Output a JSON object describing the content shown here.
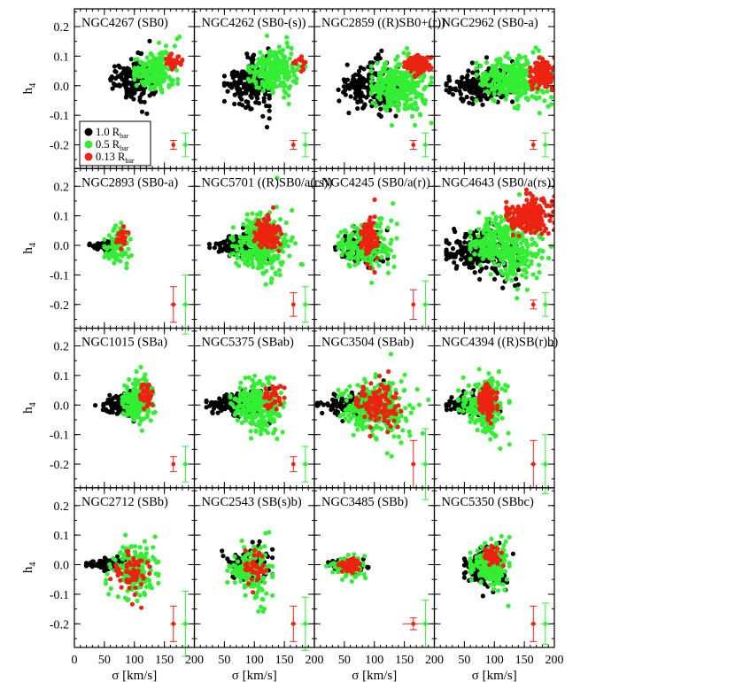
{
  "chart_data": {
    "type": "scatter",
    "xlabel": "σ [km/s]",
    "ylabel": "h",
    "ylabel_sub": "4",
    "xlim": [
      0,
      200
    ],
    "ylim": [
      -0.28,
      0.26
    ],
    "xticks": [
      0,
      50,
      100,
      150,
      200
    ],
    "yticks": [
      -0.2,
      -0.1,
      0.0,
      0.1,
      0.2
    ],
    "xtick_labels": [
      "0",
      "50",
      "100",
      "150",
      "200"
    ],
    "ytick_labels": [
      "-0.2",
      "-0.1",
      "0.0",
      "0.1",
      "0.2"
    ],
    "legend": [
      {
        "name": "1.0 R",
        "sub": "bar",
        "color": "#000000"
      },
      {
        "name": "0.5 R",
        "sub": "bar",
        "color": "#33ee33"
      },
      {
        "name": "0.13 R",
        "sub": "bar",
        "color": "#ee2211"
      }
    ],
    "panels": [
      {
        "title": "NGC4267 (SB0)",
        "series": [
          {
            "name": "1.0 R_bar",
            "cx": 95,
            "cy": 0.02,
            "sx": 18,
            "sy": 0.04,
            "xmin": 60,
            "xmax": 135,
            "n": 150,
            "skew": 0.6
          },
          {
            "name": "0.5 R_bar",
            "cx": 135,
            "cy": 0.05,
            "sx": 18,
            "sy": 0.04,
            "xmin": 100,
            "xmax": 175,
            "n": 190,
            "skew": 0.5
          },
          {
            "name": "0.13 R_bar",
            "cx": 165,
            "cy": 0.08,
            "sx": 8,
            "sy": 0.02,
            "xmin": 150,
            "xmax": 180,
            "n": 30,
            "skew": 0.3
          }
        ],
        "error_bars": {
          "red": {
            "x": 165,
            "y": -0.2,
            "xerr": 3,
            "yerr": 0.015
          },
          "green": {
            "x": 185,
            "y": -0.2,
            "xerr": 5,
            "yerr": 0.04
          }
        }
      },
      {
        "title": "NGC4262 (SB0-(s))",
        "series": [
          {
            "name": "1.0 R_bar",
            "cx": 90,
            "cy": 0.0,
            "sx": 20,
            "sy": 0.04,
            "xmin": 50,
            "xmax": 125,
            "n": 180,
            "skew": 0.6
          },
          {
            "name": "0.5 R_bar",
            "cx": 130,
            "cy": 0.05,
            "sx": 20,
            "sy": 0.045,
            "xmin": 90,
            "xmax": 185,
            "n": 220,
            "skew": 0.5
          },
          {
            "name": "0.13 R_bar",
            "cx": 175,
            "cy": 0.08,
            "sx": 8,
            "sy": 0.02,
            "xmin": 165,
            "xmax": 190,
            "n": 12,
            "skew": 0.3
          }
        ],
        "error_bars": {
          "red": {
            "x": 165,
            "y": -0.2,
            "xerr": 3,
            "yerr": 0.015
          },
          "green": {
            "x": 185,
            "y": -0.2,
            "xerr": 5,
            "yerr": 0.04
          }
        }
      },
      {
        "title": "NGC2859 ((R)SB0+(r))",
        "series": [
          {
            "name": "1.0 R_bar",
            "cx": 95,
            "cy": 0.0,
            "sx": 25,
            "sy": 0.04,
            "xmin": 40,
            "xmax": 140,
            "n": 180,
            "skew": 0.7
          },
          {
            "name": "0.5 R_bar",
            "cx": 140,
            "cy": 0.0,
            "sx": 22,
            "sy": 0.06,
            "xmin": 95,
            "xmax": 195,
            "n": 300,
            "skew": 0.4
          },
          {
            "name": "0.13 R_bar",
            "cx": 172,
            "cy": 0.07,
            "sx": 12,
            "sy": 0.03,
            "xmin": 150,
            "xmax": 195,
            "n": 100,
            "skew": 0.2
          }
        ],
        "error_bars": {
          "red": {
            "x": 165,
            "y": -0.2,
            "xerr": 3,
            "yerr": 0.015
          },
          "green": {
            "x": 185,
            "y": -0.2,
            "xerr": 5,
            "yerr": 0.04
          }
        }
      },
      {
        "title": "NGC2962 (SB0-a)",
        "series": [
          {
            "name": "1.0 R_bar",
            "cx": 75,
            "cy": 0.0,
            "sx": 30,
            "sy": 0.03,
            "xmin": 20,
            "xmax": 130,
            "n": 180,
            "skew": 0.7
          },
          {
            "name": "0.5 R_bar",
            "cx": 130,
            "cy": 0.02,
            "sx": 28,
            "sy": 0.05,
            "xmin": 70,
            "xmax": 195,
            "n": 320,
            "skew": 0.4
          },
          {
            "name": "0.13 R_bar",
            "cx": 180,
            "cy": 0.04,
            "sx": 10,
            "sy": 0.04,
            "xmin": 160,
            "xmax": 200,
            "n": 120,
            "skew": 0.2
          }
        ],
        "error_bars": {
          "red": {
            "x": 165,
            "y": -0.2,
            "xerr": 3,
            "yerr": 0.015
          },
          "green": {
            "x": 185,
            "y": -0.2,
            "xerr": 5,
            "yerr": 0.04
          }
        }
      },
      {
        "title": "NGC2893 (SB0-a)",
        "series": [
          {
            "name": "1.0 R_bar",
            "cx": 50,
            "cy": 0.0,
            "sx": 14,
            "sy": 0.01,
            "xmin": 25,
            "xmax": 80,
            "n": 80,
            "skew": 0.4
          },
          {
            "name": "0.5 R_bar",
            "cx": 70,
            "cy": -0.01,
            "sx": 10,
            "sy": 0.05,
            "xmin": 50,
            "xmax": 95,
            "n": 90,
            "skew": 0.3
          },
          {
            "name": "0.13 R_bar",
            "cx": 78,
            "cy": 0.02,
            "sx": 5,
            "sy": 0.03,
            "xmin": 68,
            "xmax": 90,
            "n": 25,
            "skew": 0.2
          }
        ],
        "error_bars": {
          "red": {
            "x": 165,
            "y": -0.2,
            "xerr": 5,
            "yerr": 0.06
          },
          "green": {
            "x": 185,
            "y": -0.2,
            "xerr": 6,
            "yerr": 0.1
          }
        }
      },
      {
        "title": "NGC5701 ((R)SB0/a(rs))",
        "series": [
          {
            "name": "1.0 R_bar",
            "cx": 75,
            "cy": 0.0,
            "sx": 22,
            "sy": 0.02,
            "xmin": 25,
            "xmax": 130,
            "n": 140,
            "skew": 0.7
          },
          {
            "name": "0.5 R_bar",
            "cx": 110,
            "cy": 0.0,
            "sx": 22,
            "sy": 0.06,
            "xmin": 60,
            "xmax": 180,
            "n": 280,
            "skew": 0.5
          },
          {
            "name": "0.13 R_bar",
            "cx": 120,
            "cy": 0.04,
            "sx": 10,
            "sy": 0.05,
            "xmin": 100,
            "xmax": 145,
            "n": 120,
            "skew": 0.2
          }
        ],
        "error_bars": {
          "red": {
            "x": 165,
            "y": -0.2,
            "xerr": 3,
            "yerr": 0.04
          },
          "green": {
            "x": 185,
            "y": -0.2,
            "xerr": 5,
            "yerr": 0.06
          }
        }
      },
      {
        "title": "NGC4245 (SB0/a(r))",
        "series": [
          {
            "name": "1.0 R_bar",
            "cx": 80,
            "cy": -0.01,
            "sx": 18,
            "sy": 0.04,
            "xmin": 30,
            "xmax": 130,
            "n": 120,
            "skew": 0.6
          },
          {
            "name": "0.5 R_bar",
            "cx": 85,
            "cy": 0.0,
            "sx": 22,
            "sy": 0.05,
            "xmin": 40,
            "xmax": 150,
            "n": 200,
            "skew": 0.5
          },
          {
            "name": "0.13 R_bar",
            "cx": 90,
            "cy": 0.02,
            "sx": 7,
            "sy": 0.05,
            "xmin": 78,
            "xmax": 105,
            "n": 100,
            "skew": 0.2
          }
        ],
        "error_bars": {
          "red": {
            "x": 165,
            "y": -0.2,
            "xerr": 3,
            "yerr": 0.05
          },
          "green": {
            "x": 185,
            "y": -0.2,
            "xerr": 5,
            "yerr": 0.08
          }
        }
      },
      {
        "title": "NGC4643 (SB0/a(rs))",
        "series": [
          {
            "name": "1.0 R_bar",
            "cx": 80,
            "cy": -0.02,
            "sx": 30,
            "sy": 0.04,
            "xmin": 20,
            "xmax": 140,
            "n": 220,
            "skew": 0.7
          },
          {
            "name": "0.5 R_bar",
            "cx": 120,
            "cy": 0.0,
            "sx": 30,
            "sy": 0.07,
            "xmin": 60,
            "xmax": 195,
            "n": 380,
            "skew": 0.4
          },
          {
            "name": "0.13 R_bar",
            "cx": 160,
            "cy": 0.1,
            "sx": 20,
            "sy": 0.05,
            "xmin": 120,
            "xmax": 200,
            "n": 220,
            "skew": 0.2
          }
        ],
        "error_bars": {
          "red": {
            "x": 165,
            "y": -0.2,
            "xerr": 3,
            "yerr": 0.015
          },
          "green": {
            "x": 185,
            "y": -0.2,
            "xerr": 5,
            "yerr": 0.04
          }
        }
      },
      {
        "title": "NGC1015 (SBa)",
        "series": [
          {
            "name": "1.0 R_bar",
            "cx": 80,
            "cy": 0.0,
            "sx": 18,
            "sy": 0.02,
            "xmin": 5,
            "xmax": 140,
            "n": 120,
            "skew": 0.6
          },
          {
            "name": "0.5 R_bar",
            "cx": 105,
            "cy": 0.01,
            "sx": 12,
            "sy": 0.05,
            "xmin": 80,
            "xmax": 140,
            "n": 200,
            "skew": 0.5
          },
          {
            "name": "0.13 R_bar",
            "cx": 120,
            "cy": 0.03,
            "sx": 6,
            "sy": 0.03,
            "xmin": 110,
            "xmax": 135,
            "n": 40,
            "skew": 0.2
          }
        ],
        "error_bars": {
          "red": {
            "x": 165,
            "y": -0.2,
            "xerr": 3,
            "yerr": 0.025
          },
          "green": {
            "x": 185,
            "y": -0.2,
            "xerr": 6,
            "yerr": 0.06
          }
        }
      },
      {
        "title": "NGC5375 (SBab)",
        "series": [
          {
            "name": "1.0 R_bar",
            "cx": 70,
            "cy": 0.0,
            "sx": 25,
            "sy": 0.02,
            "xmin": 20,
            "xmax": 125,
            "n": 140,
            "skew": 0.7
          },
          {
            "name": "0.5 R_bar",
            "cx": 105,
            "cy": 0.0,
            "sx": 20,
            "sy": 0.05,
            "xmin": 60,
            "xmax": 155,
            "n": 260,
            "skew": 0.5
          },
          {
            "name": "0.13 R_bar",
            "cx": 130,
            "cy": 0.03,
            "sx": 8,
            "sy": 0.04,
            "xmin": 115,
            "xmax": 150,
            "n": 40,
            "skew": 0.2
          }
        ],
        "error_bars": {
          "red": {
            "x": 165,
            "y": -0.2,
            "xerr": 3,
            "yerr": 0.025
          },
          "green": {
            "x": 185,
            "y": -0.2,
            "xerr": 6,
            "yerr": 0.06
          }
        }
      },
      {
        "title": "NGC3504 (SBab)",
        "series": [
          {
            "name": "1.0 R_bar",
            "cx": 60,
            "cy": 0.0,
            "sx": 28,
            "sy": 0.02,
            "xmin": 5,
            "xmax": 130,
            "n": 140,
            "skew": 0.7
          },
          {
            "name": "0.5 R_bar",
            "cx": 100,
            "cy": -0.01,
            "sx": 28,
            "sy": 0.06,
            "xmin": 40,
            "xmax": 190,
            "n": 280,
            "skew": 0.5
          },
          {
            "name": "0.13 R_bar",
            "cx": 105,
            "cy": 0.0,
            "sx": 18,
            "sy": 0.05,
            "xmin": 70,
            "xmax": 145,
            "n": 120,
            "skew": 0.3
          }
        ],
        "error_bars": {
          "red": {
            "x": 165,
            "y": -0.2,
            "xerr": 4,
            "yerr": 0.08
          },
          "green": {
            "x": 185,
            "y": -0.2,
            "xerr": 8,
            "yerr": 0.12
          }
        }
      },
      {
        "title": "NGC4394 ((R)SB(r)b)",
        "series": [
          {
            "name": "1.0 R_bar",
            "cx": 60,
            "cy": 0.0,
            "sx": 20,
            "sy": 0.02,
            "xmin": 20,
            "xmax": 110,
            "n": 100,
            "skew": 0.7
          },
          {
            "name": "0.5 R_bar",
            "cx": 85,
            "cy": 0.0,
            "sx": 20,
            "sy": 0.06,
            "xmin": 40,
            "xmax": 125,
            "n": 220,
            "skew": 0.5
          },
          {
            "name": "0.13 R_bar",
            "cx": 88,
            "cy": 0.02,
            "sx": 7,
            "sy": 0.04,
            "xmin": 75,
            "xmax": 105,
            "n": 110,
            "skew": 0.2
          }
        ],
        "error_bars": {
          "red": {
            "x": 165,
            "y": -0.2,
            "xerr": 5,
            "yerr": 0.08
          },
          "green": {
            "x": 185,
            "y": -0.2,
            "xerr": 8,
            "yerr": 0.1
          }
        }
      },
      {
        "title": "NGC2712 (SBb)",
        "series": [
          {
            "name": "1.0 R_bar",
            "cx": 65,
            "cy": 0.0,
            "sx": 22,
            "sy": 0.01,
            "xmin": 20,
            "xmax": 135,
            "n": 120,
            "skew": 0.7
          },
          {
            "name": "0.5 R_bar",
            "cx": 100,
            "cy": -0.02,
            "sx": 20,
            "sy": 0.05,
            "xmin": 40,
            "xmax": 140,
            "n": 180,
            "skew": 0.5
          },
          {
            "name": "0.13 R_bar",
            "cx": 95,
            "cy": -0.03,
            "sx": 15,
            "sy": 0.05,
            "xmin": 60,
            "xmax": 125,
            "n": 60,
            "skew": 0.3
          }
        ],
        "error_bars": {
          "red": {
            "x": 165,
            "y": -0.2,
            "xerr": 5,
            "yerr": 0.06
          },
          "green": {
            "x": 185,
            "y": -0.2,
            "xerr": 8,
            "yerr": 0.11
          }
        }
      },
      {
        "title": "NGC2543 (SB(s)b)",
        "series": [
          {
            "name": "1.0 R_bar",
            "cx": 90,
            "cy": 0.0,
            "sx": 18,
            "sy": 0.03,
            "xmin": 10,
            "xmax": 130,
            "n": 110,
            "skew": 0.6
          },
          {
            "name": "0.5 R_bar",
            "cx": 95,
            "cy": -0.02,
            "sx": 16,
            "sy": 0.05,
            "xmin": 55,
            "xmax": 130,
            "n": 160,
            "skew": 0.5
          },
          {
            "name": "0.13 R_bar",
            "cx": 100,
            "cy": -0.01,
            "sx": 10,
            "sy": 0.04,
            "xmin": 85,
            "xmax": 120,
            "n": 40,
            "skew": 0.3
          }
        ],
        "error_bars": {
          "red": {
            "x": 165,
            "y": -0.2,
            "xerr": 5,
            "yerr": 0.06
          },
          "green": {
            "x": 185,
            "y": -0.2,
            "xerr": 8,
            "yerr": 0.09
          }
        }
      },
      {
        "title": "NGC3485 (SBb)",
        "series": [
          {
            "name": "1.0 R_bar",
            "cx": 55,
            "cy": 0.0,
            "sx": 15,
            "sy": 0.01,
            "xmin": 15,
            "xmax": 90,
            "n": 80,
            "skew": 0.5
          },
          {
            "name": "0.5 R_bar",
            "cx": 55,
            "cy": -0.005,
            "sx": 15,
            "sy": 0.02,
            "xmin": 20,
            "xmax": 85,
            "n": 110,
            "skew": 0.4
          },
          {
            "name": "0.13 R_bar",
            "cx": 58,
            "cy": -0.005,
            "sx": 10,
            "sy": 0.015,
            "xmin": 35,
            "xmax": 80,
            "n": 50,
            "skew": 0.3
          }
        ],
        "error_bars": {
          "red": {
            "x": 165,
            "y": -0.2,
            "xerr": 18,
            "yerr": 0.02
          },
          "green": {
            "x": 185,
            "y": -0.2,
            "xerr": 12,
            "yerr": 0.08
          }
        }
      },
      {
        "title": "NGC5350 (SBbc)",
        "series": [
          {
            "name": "1.0 R_bar",
            "cx": 85,
            "cy": -0.01,
            "sx": 18,
            "sy": 0.04,
            "xmin": 50,
            "xmax": 165,
            "n": 140,
            "skew": 0.6
          },
          {
            "name": "0.5 R_bar",
            "cx": 90,
            "cy": 0.0,
            "sx": 15,
            "sy": 0.04,
            "xmin": 60,
            "xmax": 125,
            "n": 200,
            "skew": 0.5
          },
          {
            "name": "0.13 R_bar",
            "cx": 95,
            "cy": 0.03,
            "sx": 8,
            "sy": 0.02,
            "xmin": 80,
            "xmax": 115,
            "n": 40,
            "skew": 0.3
          }
        ],
        "error_bars": {
          "red": {
            "x": 165,
            "y": -0.2,
            "xerr": 5,
            "yerr": 0.06
          },
          "green": {
            "x": 185,
            "y": -0.2,
            "xerr": 8,
            "yerr": 0.07
          }
        }
      }
    ]
  }
}
